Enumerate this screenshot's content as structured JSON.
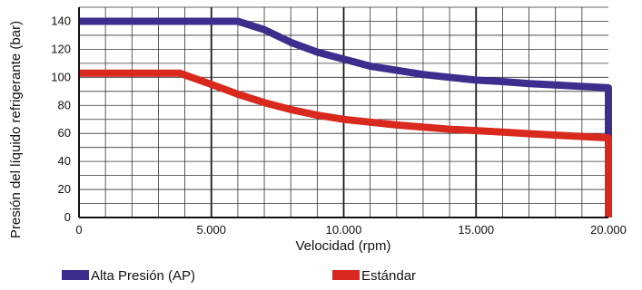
{
  "chart_data": {
    "type": "line",
    "title": "",
    "xlabel": "Velocidad (rpm)",
    "ylabel": "Presión del líquido refrigerante (bar)",
    "xlim": [
      0,
      20000
    ],
    "ylim": [
      0,
      150
    ],
    "x_ticks": [
      0,
      5000,
      10000,
      15000,
      20000
    ],
    "x_tick_labels": [
      "0",
      "5.000",
      "10.000",
      "15.000",
      "20.000"
    ],
    "y_ticks": [
      0,
      20,
      40,
      60,
      80,
      100,
      120,
      140
    ],
    "y_tick_labels": [
      "0",
      "20",
      "40",
      "60",
      "80",
      "100",
      "120",
      "140"
    ],
    "grid": true,
    "legend_position": "bottom",
    "series": [
      {
        "name": "Alta Presión (AP)",
        "color": "#3b2e8c",
        "x": [
          0,
          6000,
          7000,
          8000,
          9000,
          10000,
          11000,
          12000,
          13000,
          14000,
          15000,
          16000,
          17000,
          18000,
          19000,
          20000,
          20000
        ],
        "y": [
          140,
          140,
          134,
          125,
          118,
          113,
          108,
          105,
          102,
          100,
          98,
          97,
          95.5,
          94.5,
          93.5,
          92.5,
          0
        ]
      },
      {
        "name": "Estándar",
        "color": "#d9281e",
        "x": [
          0,
          3800,
          5000,
          6000,
          7000,
          8000,
          9000,
          10000,
          11000,
          12000,
          13000,
          14000,
          15000,
          16000,
          17000,
          18000,
          19000,
          20000,
          20000
        ],
        "y": [
          103,
          103,
          95,
          88,
          82,
          77,
          73,
          70,
          68,
          66,
          64.5,
          63,
          62,
          61,
          59.8,
          58.8,
          57.8,
          56.8,
          0
        ]
      }
    ]
  }
}
